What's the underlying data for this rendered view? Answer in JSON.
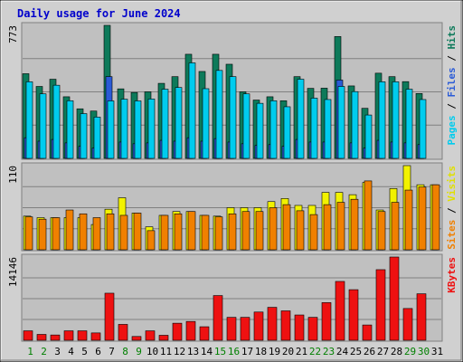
{
  "title": "Daily usage for June 2024",
  "colors": {
    "hits_dark": "#0d7a5a",
    "hits": "#00a3a3",
    "files": "#2a5bd7",
    "pages": "#00ccee",
    "visits": "#f2f200",
    "sites": "#f08000",
    "kbytes": "#ee1111",
    "title": "#0000cc",
    "weekend_day": "#008000",
    "weekday": "#000000",
    "bg": "#c0c0c0"
  },
  "chart_data": [
    {
      "type": "bar",
      "panel": "hits-files-pages",
      "ylabel": "Pages / Files / Hits",
      "ymax_label": "773",
      "ylim": [
        0,
        773
      ],
      "categories": [
        "1",
        "2",
        "3",
        "4",
        "5",
        "6",
        "7",
        "8",
        "9",
        "10",
        "11",
        "12",
        "13",
        "14",
        "15",
        "16",
        "17",
        "18",
        "19",
        "20",
        "21",
        "22",
        "23",
        "24",
        "25",
        "26",
        "27",
        "28",
        "29",
        "30",
        "31"
      ],
      "series": [
        {
          "name": "Hits",
          "values": [
            492,
            418,
            460,
            358,
            288,
            275,
            773,
            404,
            383,
            387,
            436,
            475,
            605,
            505,
            605,
            547,
            387,
            339,
            358,
            335,
            475,
            407,
            408,
            708,
            421,
            291,
            495,
            475,
            446,
            377,
            0
          ]
        },
        {
          "name": "Files",
          "values": [
            120,
            100,
            110,
            90,
            70,
            60,
            475,
            95,
            85,
            90,
            105,
            100,
            120,
            100,
            115,
            95,
            85,
            75,
            80,
            70,
            110,
            95,
            95,
            455,
            90,
            60,
            105,
            95,
            90,
            80,
            0
          ]
        },
        {
          "name": "Pages",
          "values": [
            445,
            375,
            425,
            335,
            260,
            240,
            334,
            344,
            334,
            345,
            402,
            412,
            555,
            405,
            511,
            475,
            375,
            320,
            335,
            300,
            460,
            350,
            342,
            418,
            388,
            252,
            445,
            445,
            402,
            342,
            0
          ]
        }
      ]
    },
    {
      "type": "bar",
      "panel": "visits-sites",
      "ylabel": "Sites / Visits",
      "ymax_label": "110",
      "ylim": [
        0,
        110
      ],
      "series": [
        {
          "name": "Visits",
          "values": [
            44,
            42,
            42,
            42,
            42,
            33,
            53,
            68,
            48,
            30,
            45,
            50,
            50,
            45,
            44,
            55,
            55,
            55,
            63,
            67,
            58,
            58,
            75,
            75,
            72,
            88,
            52,
            80,
            110,
            85,
            85
          ]
        },
        {
          "name": "Sites",
          "values": [
            43,
            40,
            42,
            52,
            47,
            42,
            47,
            45,
            48,
            25,
            45,
            47,
            50,
            45,
            43,
            47,
            50,
            50,
            55,
            59,
            51,
            46,
            59,
            62,
            66,
            90,
            50,
            62,
            78,
            82,
            85
          ]
        }
      ]
    },
    {
      "type": "bar",
      "panel": "kbytes",
      "ylabel": "KBytes",
      "ymax_label": "14146",
      "ylim": [
        0,
        14146
      ],
      "series": [
        {
          "name": "KBytes",
          "values": [
            1609,
            1000,
            900,
            1609,
            1609,
            1250,
            8000,
            2700,
            650,
            1609,
            850,
            2900,
            3200,
            2300,
            7600,
            3900,
            3900,
            4800,
            5600,
            5000,
            4300,
            3900,
            6400,
            10000,
            8600,
            2600,
            12000,
            14146,
            5400,
            7900,
            0
          ]
        }
      ]
    }
  ]
}
